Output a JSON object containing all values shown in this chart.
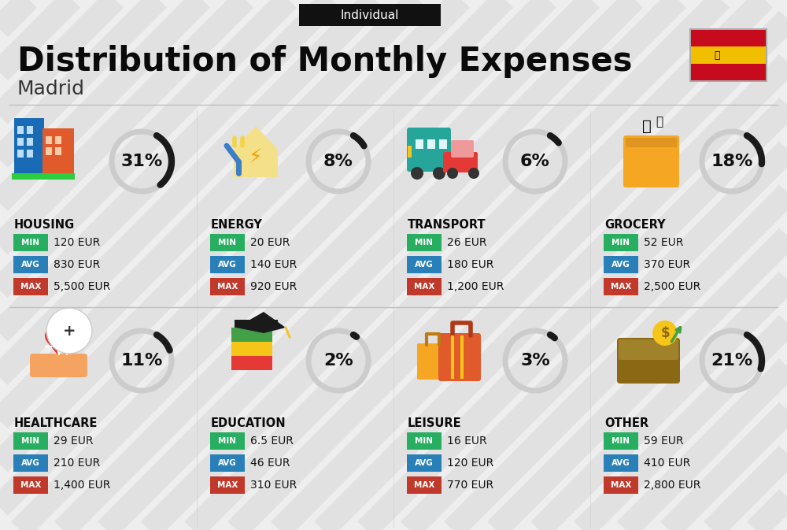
{
  "title": "Distribution of Monthly Expenses",
  "subtitle": "Individual",
  "city": "Madrid",
  "bg_color": "#eeeeee",
  "categories": [
    {
      "name": "HOUSING",
      "pct": 31,
      "min": "120 EUR",
      "avg": "830 EUR",
      "max": "5,500 EUR",
      "icon_colors": [
        "#1a6bb5",
        "#e05a2b",
        "#2ecc40",
        "#f5c518"
      ]
    },
    {
      "name": "ENERGY",
      "pct": 8,
      "min": "20 EUR",
      "avg": "140 EUR",
      "max": "920 EUR",
      "icon_colors": [
        "#3a7ec8",
        "#c8882a",
        "#f5d442"
      ]
    },
    {
      "name": "TRANSPORT",
      "pct": 6,
      "min": "26 EUR",
      "avg": "180 EUR",
      "max": "1,200 EUR",
      "icon_colors": [
        "#26a69a",
        "#e53935",
        "#f5c518"
      ]
    },
    {
      "name": "GROCERY",
      "pct": 18,
      "min": "52 EUR",
      "avg": "370 EUR",
      "max": "2,500 EUR",
      "icon_colors": [
        "#f5a623",
        "#e05a2b",
        "#43a047"
      ]
    },
    {
      "name": "HEALTHCARE",
      "pct": 11,
      "min": "29 EUR",
      "avg": "210 EUR",
      "max": "1,400 EUR",
      "icon_colors": [
        "#e53935",
        "#26a69a",
        "#ffffff"
      ]
    },
    {
      "name": "EDUCATION",
      "pct": 2,
      "min": "6.5 EUR",
      "avg": "46 EUR",
      "max": "310 EUR",
      "icon_colors": [
        "#1a6bb5",
        "#e05a2b",
        "#43a047"
      ]
    },
    {
      "name": "LEISURE",
      "pct": 3,
      "min": "16 EUR",
      "avg": "120 EUR",
      "max": "770 EUR",
      "icon_colors": [
        "#e05a2b",
        "#f5c518",
        "#43a047"
      ]
    },
    {
      "name": "OTHER",
      "pct": 21,
      "min": "59 EUR",
      "avg": "410 EUR",
      "max": "2,800 EUR",
      "icon_colors": [
        "#8b6914",
        "#43a047",
        "#f5c518"
      ]
    }
  ],
  "min_color": "#27ae60",
  "avg_color": "#2980b9",
  "max_color": "#c0392b",
  "arc_color_dark": "#1a1a1a",
  "arc_color_light": "#cccccc",
  "stripe_color": "#d5d5d5",
  "title_fontsize": 30,
  "subtitle_fontsize": 11,
  "city_fontsize": 18,
  "cat_fontsize": 10.5,
  "val_fontsize": 10,
  "pct_fontsize": 16,
  "badge_fontsize": 7.5
}
